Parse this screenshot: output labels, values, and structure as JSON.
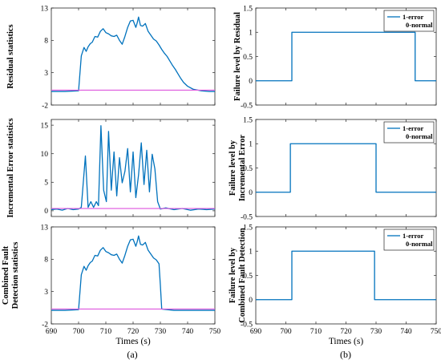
{
  "panel_labels": [
    "(a)",
    "(b)"
  ],
  "colors": {
    "statistic": "#0072BD",
    "threshold": "#DD55DD",
    "failure": "#0072BD"
  },
  "chart_data": [
    {
      "type": "line",
      "column": "a",
      "row": 0,
      "ylabel": [
        "Residual statistics"
      ],
      "xlim": [
        690,
        750
      ],
      "ylim": [
        -2,
        13
      ],
      "xticks": [
        690,
        700,
        710,
        720,
        730,
        740,
        750
      ],
      "yticks": [
        -2,
        3,
        8,
        13
      ],
      "show_x_ticklabels": false,
      "series": [
        {
          "role": "statistic",
          "x": [
            690,
            695,
            700,
            701,
            702,
            702.8,
            703.5,
            704.3,
            705,
            706,
            707,
            708,
            709,
            710,
            711,
            712,
            713,
            714,
            715,
            716,
            717,
            718,
            719,
            720,
            721,
            721.5,
            722,
            722.7,
            723.5,
            724.5,
            725.5,
            726.5,
            727.5,
            728.5,
            729.5,
            730.5,
            731.5,
            732.5,
            733.5,
            734.5,
            735.5,
            736.5,
            737.5,
            738.5,
            740,
            742,
            745,
            748,
            750
          ],
          "y": [
            0.1,
            0.1,
            0.2,
            5.6,
            6.9,
            6.3,
            7.0,
            7.5,
            7.7,
            8.6,
            8.5,
            9.4,
            9.8,
            9.2,
            9.0,
            8.7,
            8.6,
            8.8,
            8.0,
            7.4,
            8.6,
            10.0,
            11.0,
            11.1,
            10.0,
            10.7,
            11.6,
            10.3,
            10.2,
            10.6,
            9.4,
            8.8,
            8.2,
            7.9,
            7.3,
            6.6,
            6.0,
            5.5,
            4.8,
            4.1,
            3.5,
            2.8,
            2.1,
            1.5,
            0.9,
            0.45,
            0.2,
            0.1,
            0.1
          ]
        },
        {
          "role": "threshold",
          "x": [
            690,
            750
          ],
          "y": [
            0.3,
            0.3
          ]
        }
      ]
    },
    {
      "type": "line",
      "column": "b",
      "row": 0,
      "ylabel": [
        "Failure level by Residual"
      ],
      "xlim": [
        690,
        750
      ],
      "ylim": [
        -0.5,
        1.5
      ],
      "xticks": [
        690,
        700,
        710,
        720,
        730,
        740,
        750
      ],
      "yticks": [
        -0.5,
        0,
        0.5,
        1,
        1.5
      ],
      "show_x_ticklabels": false,
      "legend": {
        "entries": [
          "1-error",
          "0-normal"
        ],
        "placement": "top-right"
      },
      "series": [
        {
          "role": "failure",
          "x": [
            690,
            702,
            702,
            743,
            743,
            750
          ],
          "y": [
            0,
            0,
            1,
            1,
            0,
            0
          ]
        }
      ]
    },
    {
      "type": "line",
      "column": "a",
      "row": 1,
      "ylabel": [
        "Incremental Error statistics"
      ],
      "xlim": [
        690,
        750
      ],
      "ylim": [
        -1,
        16
      ],
      "xticks": [
        690,
        700,
        710,
        720,
        730,
        740,
        750
      ],
      "yticks": [
        0,
        5,
        10,
        15
      ],
      "show_x_ticklabels": false,
      "series": [
        {
          "role": "statistic",
          "x": [
            690,
            692,
            694,
            696,
            698,
            700,
            701,
            702.5,
            703.5,
            704.5,
            705.5,
            706.5,
            707.3,
            708.2,
            709.2,
            710.2,
            711,
            712,
            713,
            714,
            715,
            716,
            717,
            718,
            719,
            720,
            721,
            722,
            723,
            724,
            725,
            726,
            727,
            728,
            729,
            730,
            732,
            735,
            738,
            741,
            744,
            747,
            750
          ],
          "y": [
            0.2,
            0.3,
            0.1,
            0.4,
            0.2,
            0.3,
            0.6,
            9.6,
            0.6,
            1.6,
            0.6,
            1.6,
            0.9,
            14.9,
            3.6,
            1.6,
            13.9,
            3.6,
            10.3,
            2.6,
            9.3,
            4.9,
            6.9,
            10.9,
            3.3,
            10.3,
            2.3,
            6.3,
            11.9,
            4.6,
            10.6,
            3.3,
            9.9,
            7.3,
            1.6,
            0.3,
            0.5,
            0.2,
            0.4,
            0.1,
            0.3,
            0.2,
            0.3
          ]
        },
        {
          "role": "threshold",
          "x": [
            690,
            750
          ],
          "y": [
            0.4,
            0.4
          ]
        }
      ]
    },
    {
      "type": "line",
      "column": "b",
      "row": 1,
      "ylabel": [
        "Failure level by",
        "Incremental Error"
      ],
      "xlim": [
        690,
        750
      ],
      "ylim": [
        -0.5,
        1.5
      ],
      "xticks": [
        690,
        700,
        710,
        720,
        730,
        740,
        750
      ],
      "yticks": [
        -0.5,
        0,
        0.5,
        1,
        1.5
      ],
      "show_x_ticklabels": false,
      "legend": {
        "entries": [
          "1-error",
          "0-normal"
        ],
        "placement": "top-right"
      },
      "series": [
        {
          "role": "failure",
          "x": [
            690,
            701.5,
            701.5,
            730,
            730,
            750
          ],
          "y": [
            0,
            0,
            1,
            1,
            0,
            0
          ]
        }
      ]
    },
    {
      "type": "line",
      "column": "a",
      "row": 2,
      "ylabel": [
        "Combined Fault",
        "Detection statistics"
      ],
      "xlim": [
        690,
        750
      ],
      "ylim": [
        -2,
        13
      ],
      "xticks": [
        690,
        700,
        710,
        720,
        730,
        740,
        750
      ],
      "yticks": [
        -2,
        3,
        8,
        13
      ],
      "show_x_ticklabels": true,
      "xlabel": "Times (s)",
      "series": [
        {
          "role": "statistic",
          "x": [
            690,
            695,
            700,
            701,
            702,
            702.8,
            703.5,
            704.3,
            705,
            706,
            707,
            708,
            709,
            710,
            711,
            712,
            713,
            714,
            715,
            716,
            717,
            718,
            719,
            720,
            721,
            721.5,
            722,
            722.7,
            723.5,
            724.5,
            725.5,
            726.5,
            727.5,
            728.5,
            729.5,
            730,
            730.5,
            735,
            740,
            745,
            750
          ],
          "y": [
            0.1,
            0.1,
            0.2,
            5.6,
            6.9,
            6.3,
            7.0,
            7.5,
            7.7,
            8.6,
            8.5,
            9.4,
            9.8,
            9.2,
            9.0,
            8.7,
            8.6,
            8.8,
            8.0,
            7.4,
            8.6,
            10.0,
            11.0,
            11.1,
            10.0,
            10.7,
            11.6,
            10.3,
            10.2,
            10.6,
            9.4,
            8.8,
            8.2,
            7.9,
            7.3,
            4.0,
            0.3,
            0.1,
            0.1,
            0.1,
            0.1
          ]
        },
        {
          "role": "threshold",
          "x": [
            690,
            750
          ],
          "y": [
            0.3,
            0.3
          ]
        }
      ]
    },
    {
      "type": "line",
      "column": "b",
      "row": 2,
      "ylabel": [
        "Failure level by",
        "Combined Fault Detection"
      ],
      "xlim": [
        690,
        750
      ],
      "ylim": [
        -0.5,
        1.5
      ],
      "xticks": [
        690,
        700,
        710,
        720,
        730,
        740,
        750
      ],
      "yticks": [
        -0.5,
        0,
        0.5,
        1,
        1.5
      ],
      "show_x_ticklabels": true,
      "xlabel": "Times (s)",
      "legend": {
        "entries": [
          "1-error",
          "0-normal"
        ],
        "placement": "top-right"
      },
      "series": [
        {
          "role": "failure",
          "x": [
            690,
            702,
            702,
            729.5,
            729.5,
            750
          ],
          "y": [
            0,
            0,
            1,
            1,
            0,
            0
          ]
        }
      ]
    }
  ]
}
